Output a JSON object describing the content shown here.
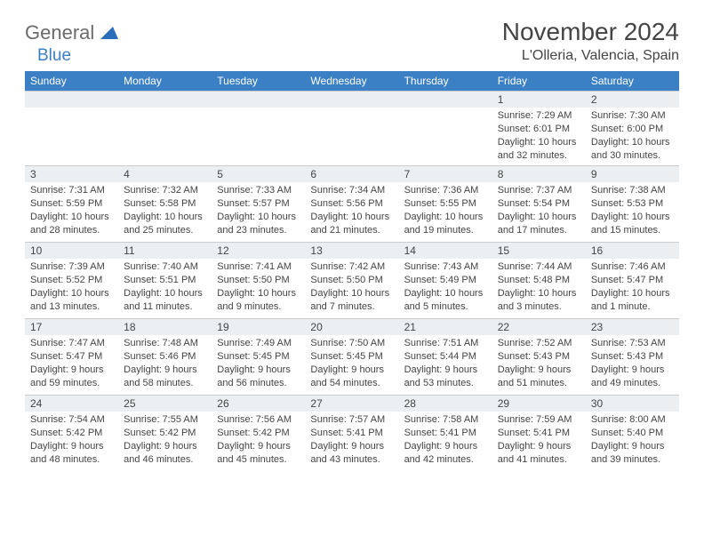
{
  "brand": {
    "general": "General",
    "blue": "Blue",
    "arrow_color": "#2a6db8"
  },
  "title": "November 2024",
  "location": "L'Olleria, Valencia, Spain",
  "accent_color": "#3b7fc4",
  "day_headers": [
    "Sunday",
    "Monday",
    "Tuesday",
    "Wednesday",
    "Thursday",
    "Friday",
    "Saturday"
  ],
  "weeks": [
    [
      {
        "n": "",
        "sr": "",
        "ss": "",
        "dl": ""
      },
      {
        "n": "",
        "sr": "",
        "ss": "",
        "dl": ""
      },
      {
        "n": "",
        "sr": "",
        "ss": "",
        "dl": ""
      },
      {
        "n": "",
        "sr": "",
        "ss": "",
        "dl": ""
      },
      {
        "n": "",
        "sr": "",
        "ss": "",
        "dl": ""
      },
      {
        "n": "1",
        "sr": "Sunrise: 7:29 AM",
        "ss": "Sunset: 6:01 PM",
        "dl": "Daylight: 10 hours and 32 minutes."
      },
      {
        "n": "2",
        "sr": "Sunrise: 7:30 AM",
        "ss": "Sunset: 6:00 PM",
        "dl": "Daylight: 10 hours and 30 minutes."
      }
    ],
    [
      {
        "n": "3",
        "sr": "Sunrise: 7:31 AM",
        "ss": "Sunset: 5:59 PM",
        "dl": "Daylight: 10 hours and 28 minutes."
      },
      {
        "n": "4",
        "sr": "Sunrise: 7:32 AM",
        "ss": "Sunset: 5:58 PM",
        "dl": "Daylight: 10 hours and 25 minutes."
      },
      {
        "n": "5",
        "sr": "Sunrise: 7:33 AM",
        "ss": "Sunset: 5:57 PM",
        "dl": "Daylight: 10 hours and 23 minutes."
      },
      {
        "n": "6",
        "sr": "Sunrise: 7:34 AM",
        "ss": "Sunset: 5:56 PM",
        "dl": "Daylight: 10 hours and 21 minutes."
      },
      {
        "n": "7",
        "sr": "Sunrise: 7:36 AM",
        "ss": "Sunset: 5:55 PM",
        "dl": "Daylight: 10 hours and 19 minutes."
      },
      {
        "n": "8",
        "sr": "Sunrise: 7:37 AM",
        "ss": "Sunset: 5:54 PM",
        "dl": "Daylight: 10 hours and 17 minutes."
      },
      {
        "n": "9",
        "sr": "Sunrise: 7:38 AM",
        "ss": "Sunset: 5:53 PM",
        "dl": "Daylight: 10 hours and 15 minutes."
      }
    ],
    [
      {
        "n": "10",
        "sr": "Sunrise: 7:39 AM",
        "ss": "Sunset: 5:52 PM",
        "dl": "Daylight: 10 hours and 13 minutes."
      },
      {
        "n": "11",
        "sr": "Sunrise: 7:40 AM",
        "ss": "Sunset: 5:51 PM",
        "dl": "Daylight: 10 hours and 11 minutes."
      },
      {
        "n": "12",
        "sr": "Sunrise: 7:41 AM",
        "ss": "Sunset: 5:50 PM",
        "dl": "Daylight: 10 hours and 9 minutes."
      },
      {
        "n": "13",
        "sr": "Sunrise: 7:42 AM",
        "ss": "Sunset: 5:50 PM",
        "dl": "Daylight: 10 hours and 7 minutes."
      },
      {
        "n": "14",
        "sr": "Sunrise: 7:43 AM",
        "ss": "Sunset: 5:49 PM",
        "dl": "Daylight: 10 hours and 5 minutes."
      },
      {
        "n": "15",
        "sr": "Sunrise: 7:44 AM",
        "ss": "Sunset: 5:48 PM",
        "dl": "Daylight: 10 hours and 3 minutes."
      },
      {
        "n": "16",
        "sr": "Sunrise: 7:46 AM",
        "ss": "Sunset: 5:47 PM",
        "dl": "Daylight: 10 hours and 1 minute."
      }
    ],
    [
      {
        "n": "17",
        "sr": "Sunrise: 7:47 AM",
        "ss": "Sunset: 5:47 PM",
        "dl": "Daylight: 9 hours and 59 minutes."
      },
      {
        "n": "18",
        "sr": "Sunrise: 7:48 AM",
        "ss": "Sunset: 5:46 PM",
        "dl": "Daylight: 9 hours and 58 minutes."
      },
      {
        "n": "19",
        "sr": "Sunrise: 7:49 AM",
        "ss": "Sunset: 5:45 PM",
        "dl": "Daylight: 9 hours and 56 minutes."
      },
      {
        "n": "20",
        "sr": "Sunrise: 7:50 AM",
        "ss": "Sunset: 5:45 PM",
        "dl": "Daylight: 9 hours and 54 minutes."
      },
      {
        "n": "21",
        "sr": "Sunrise: 7:51 AM",
        "ss": "Sunset: 5:44 PM",
        "dl": "Daylight: 9 hours and 53 minutes."
      },
      {
        "n": "22",
        "sr": "Sunrise: 7:52 AM",
        "ss": "Sunset: 5:43 PM",
        "dl": "Daylight: 9 hours and 51 minutes."
      },
      {
        "n": "23",
        "sr": "Sunrise: 7:53 AM",
        "ss": "Sunset: 5:43 PM",
        "dl": "Daylight: 9 hours and 49 minutes."
      }
    ],
    [
      {
        "n": "24",
        "sr": "Sunrise: 7:54 AM",
        "ss": "Sunset: 5:42 PM",
        "dl": "Daylight: 9 hours and 48 minutes."
      },
      {
        "n": "25",
        "sr": "Sunrise: 7:55 AM",
        "ss": "Sunset: 5:42 PM",
        "dl": "Daylight: 9 hours and 46 minutes."
      },
      {
        "n": "26",
        "sr": "Sunrise: 7:56 AM",
        "ss": "Sunset: 5:42 PM",
        "dl": "Daylight: 9 hours and 45 minutes."
      },
      {
        "n": "27",
        "sr": "Sunrise: 7:57 AM",
        "ss": "Sunset: 5:41 PM",
        "dl": "Daylight: 9 hours and 43 minutes."
      },
      {
        "n": "28",
        "sr": "Sunrise: 7:58 AM",
        "ss": "Sunset: 5:41 PM",
        "dl": "Daylight: 9 hours and 42 minutes."
      },
      {
        "n": "29",
        "sr": "Sunrise: 7:59 AM",
        "ss": "Sunset: 5:41 PM",
        "dl": "Daylight: 9 hours and 41 minutes."
      },
      {
        "n": "30",
        "sr": "Sunrise: 8:00 AM",
        "ss": "Sunset: 5:40 PM",
        "dl": "Daylight: 9 hours and 39 minutes."
      }
    ]
  ]
}
